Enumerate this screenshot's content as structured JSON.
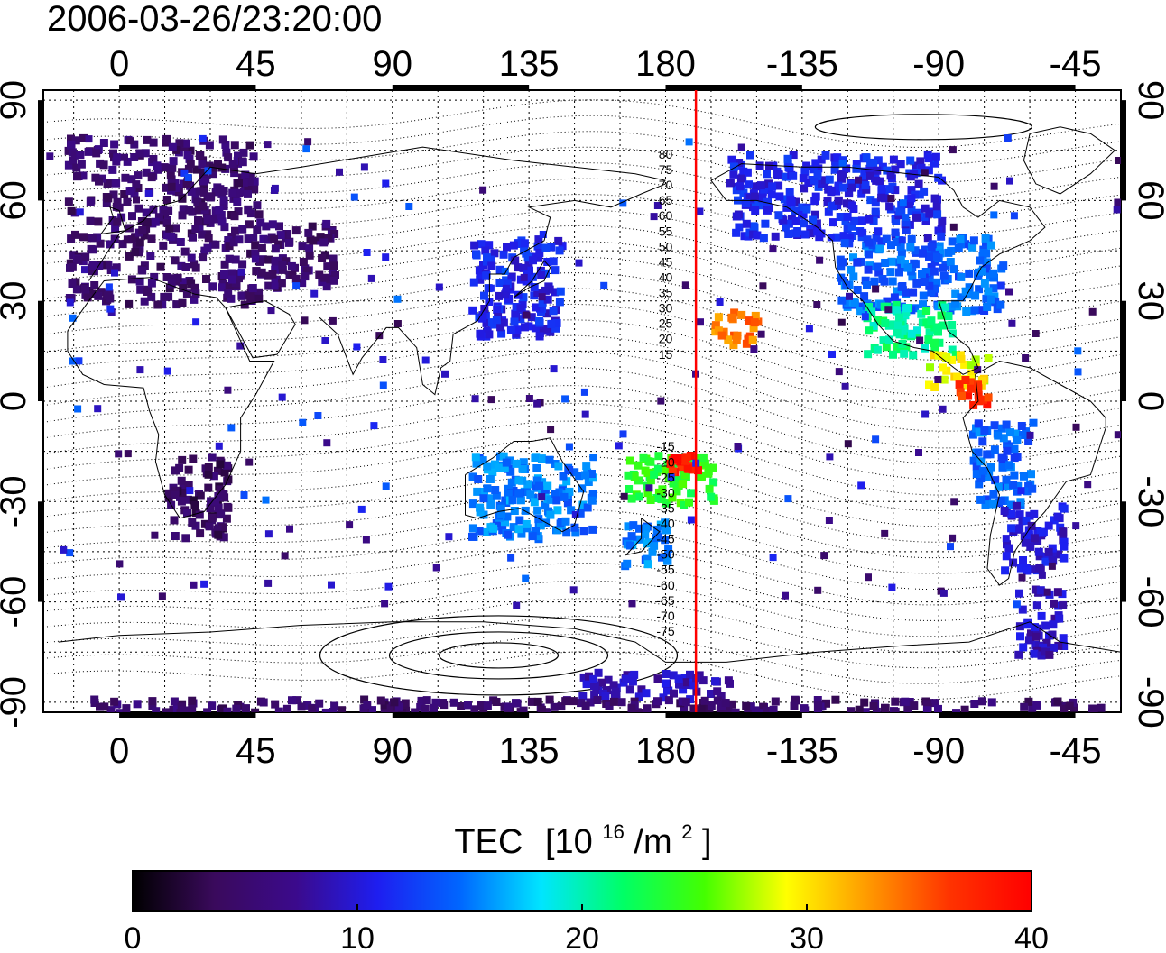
{
  "title": "2006-03-26/23:20:00",
  "colorbar": {
    "label_main": "TEC",
    "label_unit_prefix": "[10",
    "label_unit_exp": "16",
    "label_unit_mid": "/m",
    "label_unit_exp2": "2",
    "label_unit_suffix": "]",
    "min": 0,
    "max": 40,
    "ticks": [
      "0",
      "10",
      "20",
      "30",
      "40"
    ],
    "colormap": [
      "#000000",
      "#3a0a5c",
      "#3b0a8c",
      "#1e1ef0",
      "#0066ff",
      "#00e5ff",
      "#00ff66",
      "#44ff00",
      "#ffff00",
      "#ff9900",
      "#ff3300",
      "#ff0000"
    ]
  },
  "map": {
    "projection": "equirectangular",
    "lon_range": [
      -25,
      330
    ],
    "lat_range": [
      -93,
      93
    ],
    "top_lon_ticks": [
      "0",
      "45",
      "90",
      "135",
      "180",
      "-135",
      "-90",
      "-45"
    ],
    "bottom_lon_ticks": [
      "0",
      "45",
      "90",
      "135",
      "180",
      "-135",
      "-90",
      "-45"
    ],
    "left_lat_ticks": [
      "90",
      "60",
      "30",
      "0",
      "-30",
      "-60",
      "-90"
    ],
    "right_lat_ticks": [
      "90",
      "60",
      "30",
      "0",
      "-30",
      "-60",
      "-90"
    ],
    "grid": true,
    "marker_line_lon": 190,
    "marker_line_color": "#ff0000",
    "contour_labels": [
      "80",
      "75",
      "70",
      "65",
      "60",
      "55",
      "50",
      "45",
      "40",
      "35",
      "30",
      "25",
      "20",
      "15",
      "-15",
      "-20",
      "-25",
      "-30",
      "-35",
      "-40",
      "-45",
      "-50",
      "-55",
      "-60",
      "-65",
      "-70",
      "-75"
    ],
    "tec_regions": [
      {
        "lon": [
          -18,
          45
        ],
        "lat": [
          30,
          80
        ],
        "tec": 5
      },
      {
        "lon": [
          45,
          70
        ],
        "lat": [
          35,
          55
        ],
        "tec": 5
      },
      {
        "lon": [
          15,
          35
        ],
        "lat": [
          -40,
          -15
        ],
        "tec": 4
      },
      {
        "lon": [
          115,
          145
        ],
        "lat": [
          20,
          50
        ],
        "tec": 11
      },
      {
        "lon": [
          200,
          270
        ],
        "lat": [
          50,
          75
        ],
        "tec": 11
      },
      {
        "lon": [
          235,
          290
        ],
        "lat": [
          28,
          50
        ],
        "tec": 14
      },
      {
        "lon": [
          245,
          275
        ],
        "lat": [
          15,
          30
        ],
        "tec": 21
      },
      {
        "lon": [
          265,
          285
        ],
        "lat": [
          5,
          15
        ],
        "tec": 29
      },
      {
        "lon": [
          275,
          285
        ],
        "lat": [
          0,
          8
        ],
        "tec": 37
      },
      {
        "lon": [
          280,
          300
        ],
        "lat": [
          -30,
          -5
        ],
        "tec": 14
      },
      {
        "lon": [
          290,
          310
        ],
        "lat": [
          -50,
          -30
        ],
        "tec": 10
      },
      {
        "lon": [
          295,
          310
        ],
        "lat": [
          -75,
          -55
        ],
        "tec": 9
      },
      {
        "lon": [
          115,
          155
        ],
        "lat": [
          -40,
          -15
        ],
        "tec": 15
      },
      {
        "lon": [
          165,
          180
        ],
        "lat": [
          -50,
          -35
        ],
        "tec": 15
      },
      {
        "lon": [
          165,
          195
        ],
        "lat": [
          -30,
          -15
        ],
        "tec": 24
      },
      {
        "lon": [
          180,
          190
        ],
        "lat": [
          -20,
          -15
        ],
        "tec": 38
      },
      {
        "lon": [
          195,
          210
        ],
        "lat": [
          18,
          28
        ],
        "tec": 34
      },
      {
        "lon": [
          150,
          200
        ],
        "lat": [
          -88,
          -80
        ],
        "tec": 9
      },
      {
        "lon": [
          -10,
          330
        ],
        "lat": [
          -92,
          -88
        ],
        "tec": 5
      }
    ]
  }
}
